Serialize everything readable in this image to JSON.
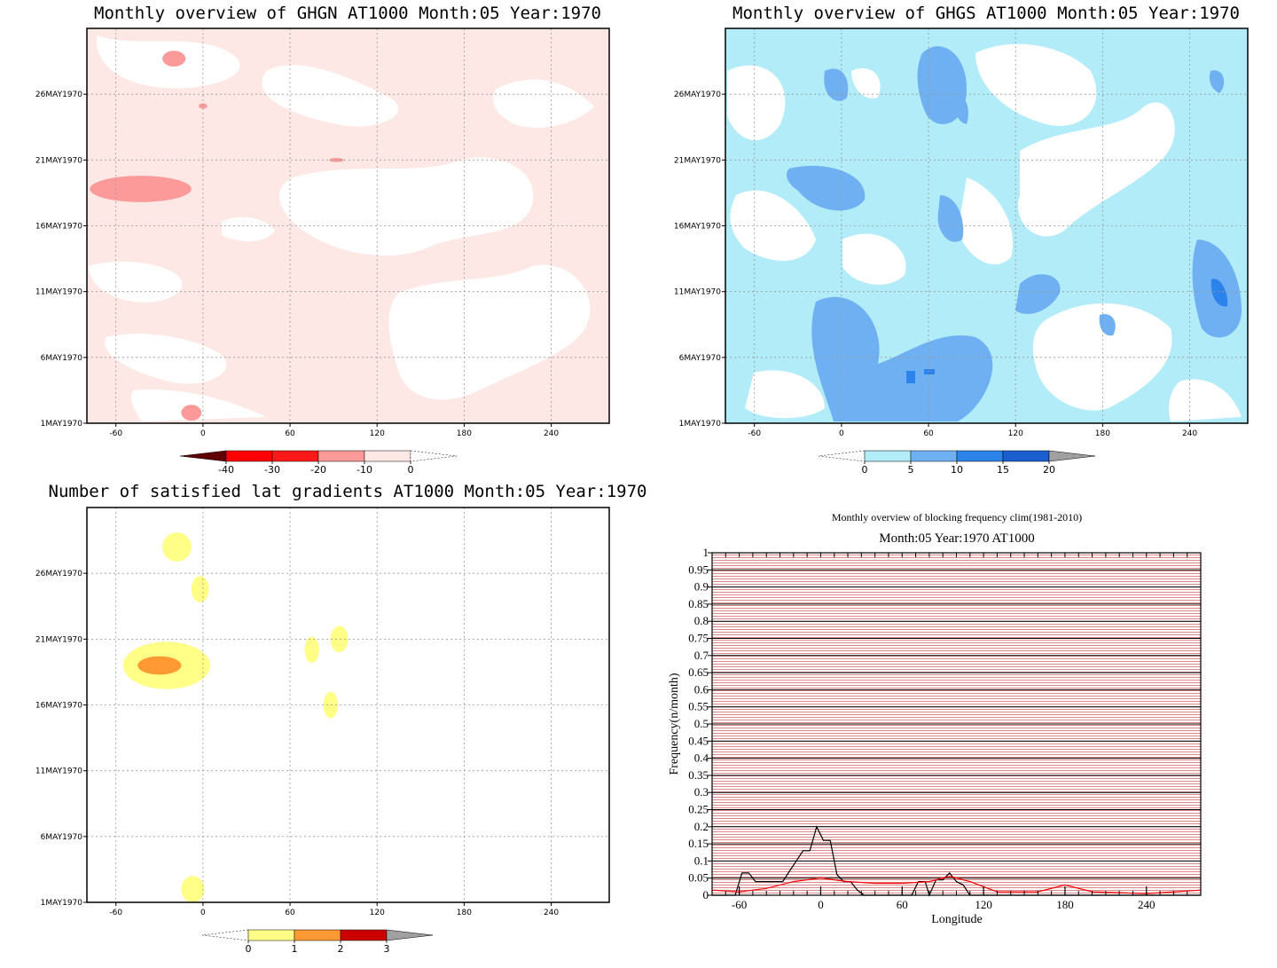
{
  "chart_data": [
    {
      "type": "heatmap",
      "title": "Monthly overview of GHGN AT1000 Month:05 Year:1970",
      "x_ticks": [
        "-60",
        "0",
        "60",
        "120",
        "180",
        "240"
      ],
      "x_tick_values": [
        -60,
        0,
        60,
        120,
        180,
        240
      ],
      "xlim": [
        -80,
        280
      ],
      "y_ticks": [
        "1MAY1970",
        "6MAY1970",
        "11MAY1970",
        "16MAY1970",
        "21MAY1970",
        "26MAY1970"
      ],
      "y_tick_values": [
        1,
        6,
        11,
        16,
        21,
        26
      ],
      "ylim": [
        1,
        31
      ],
      "colorbar": {
        "labels": [
          "-40",
          "-30",
          "-20",
          "-10",
          "0"
        ],
        "colors": [
          "#ffffff",
          "#fde8e6",
          "#fb9a98",
          "#ff1a1a",
          "#ff0000",
          "#600000"
        ]
      },
      "features": [
        {
          "lon": -20,
          "day": 28.7,
          "rlon": 8,
          "rday": 0.6,
          "level": 2
        },
        {
          "lon": -43,
          "day": 18.8,
          "rlon": 35,
          "rday": 1.0,
          "level": 2
        },
        {
          "lon": -8,
          "day": 1.8,
          "rlon": 7,
          "rday": 0.6,
          "level": 2
        },
        {
          "lon": 0,
          "day": 25.1,
          "rlon": 3,
          "rday": 0.2,
          "level": 2
        },
        {
          "lon": 92,
          "day": 21,
          "rlon": 5,
          "rday": 0.15,
          "level": 2
        }
      ]
    },
    {
      "type": "heatmap",
      "title": "Monthly overview of GHGS AT1000 Month:05 Year:1970",
      "x_ticks": [
        "-60",
        "0",
        "60",
        "120",
        "180",
        "240"
      ],
      "x_tick_values": [
        -60,
        0,
        60,
        120,
        180,
        240
      ],
      "xlim": [
        -80,
        280
      ],
      "y_ticks": [
        "1MAY1970",
        "6MAY1970",
        "11MAY1970",
        "16MAY1970",
        "21MAY1970",
        "26MAY1970"
      ],
      "y_tick_values": [
        1,
        6,
        11,
        16,
        21,
        26
      ],
      "ylim": [
        1,
        31
      ],
      "colorbar": {
        "labels": [
          "0",
          "5",
          "10",
          "15",
          "20"
        ],
        "colors": [
          "#ffffff",
          "#b2ecf8",
          "#6fb0f3",
          "#2c84eb",
          "#1a5ed0",
          "#a0a0a0"
        ]
      },
      "features": [
        {
          "lon": 60,
          "day": 4,
          "rlon": 48,
          "rday": 3.2,
          "level": 2
        },
        {
          "lon": 20,
          "day": 9,
          "rlon": 22,
          "rday": 2.2,
          "level": 2
        },
        {
          "lon": 80,
          "day": 27,
          "rlon": 12,
          "rday": 3,
          "level": 2
        },
        {
          "lon": 73,
          "day": 16,
          "rlon": 9,
          "rday": 3,
          "level": 2
        },
        {
          "lon": 0,
          "day": 19,
          "rlon": 18,
          "rday": 1.5,
          "level": 2
        },
        {
          "lon": 270,
          "day": 11,
          "rlon": 12,
          "rday": 3.5,
          "level": 2
        },
        {
          "lon": 272,
          "day": 11,
          "rlon": 4,
          "rday": 1.2,
          "level": 3
        },
        {
          "lon": 150,
          "day": 10,
          "rlon": 12,
          "rday": 2,
          "level": 2
        },
        {
          "lon": 46,
          "day": 4,
          "rlon": 2,
          "rday": 0.5,
          "level": 3
        },
        {
          "lon": 62,
          "day": 4,
          "rlon": 3,
          "rday": 0.3,
          "level": 3
        },
        {
          "lon": 7,
          "day": 28,
          "rlon": 8,
          "rday": 1.8,
          "level": 2
        }
      ]
    },
    {
      "type": "heatmap",
      "title": "Number of satisfied lat gradients AT1000 Month:05 Year:1970",
      "x_ticks": [
        "-60",
        "0",
        "60",
        "120",
        "180",
        "240"
      ],
      "x_tick_values": [
        -60,
        0,
        60,
        120,
        180,
        240
      ],
      "xlim": [
        -80,
        280
      ],
      "y_ticks": [
        "1MAY1970",
        "6MAY1970",
        "11MAY1970",
        "16MAY1970",
        "21MAY1970",
        "26MAY1970"
      ],
      "y_tick_values": [
        1,
        6,
        11,
        16,
        21,
        26
      ],
      "ylim": [
        1,
        31
      ],
      "colorbar": {
        "labels": [
          "0",
          "1",
          "2",
          "3"
        ],
        "colors": [
          "#ffffff",
          "#ffff88",
          "#ff9933",
          "#cc0000",
          "#a0a0a0"
        ]
      },
      "features": [
        {
          "lon": -18,
          "day": 28,
          "rlon": 10,
          "rday": 1.1,
          "level": 1
        },
        {
          "lon": -2,
          "day": 24.8,
          "rlon": 6,
          "rday": 1.0,
          "level": 1
        },
        {
          "lon": -25,
          "day": 19,
          "rlon": 30,
          "rday": 1.8,
          "level": 1
        },
        {
          "lon": -30,
          "day": 19,
          "rlon": 15,
          "rday": 0.7,
          "level": 2
        },
        {
          "lon": 75,
          "day": 20.2,
          "rlon": 5,
          "rday": 1.0,
          "level": 1
        },
        {
          "lon": 94,
          "day": 21.0,
          "rlon": 6,
          "rday": 1.0,
          "level": 1
        },
        {
          "lon": 88,
          "day": 16.0,
          "rlon": 5,
          "rday": 1.0,
          "level": 1
        },
        {
          "lon": -7,
          "day": 2,
          "rlon": 8,
          "rday": 1.0,
          "level": 1
        }
      ]
    },
    {
      "type": "line",
      "title": "Monthly overview of blocking frequency clim(1981-2010)",
      "subtitle": "Month:05 Year:1970  AT1000",
      "xlabel": "Longitude",
      "ylabel": "Frequency(n/month)",
      "xlim": [
        -80,
        280
      ],
      "ylim": [
        0,
        1
      ],
      "x_ticks": [
        "-60",
        "0",
        "60",
        "120",
        "180",
        "240"
      ],
      "x_tick_values": [
        -60,
        0,
        60,
        120,
        180,
        240
      ],
      "y_ticks": [
        "0",
        "0.05",
        "0.1",
        "0.15",
        "0.2",
        "0.25",
        "0.3",
        "0.35",
        "0.4",
        "0.45",
        "0.5",
        "0.55",
        "0.6",
        "0.65",
        "0.7",
        "0.75",
        "0.8",
        "0.85",
        "0.9",
        "0.95",
        "1"
      ],
      "grid": true,
      "series": [
        {
          "color": "#000000",
          "points": [
            [
              -80,
              0
            ],
            [
              -63,
              0
            ],
            [
              -58,
              0.065
            ],
            [
              -53,
              0.065
            ],
            [
              -48,
              0.04
            ],
            [
              -38,
              0.04
            ],
            [
              -28,
              0.04
            ],
            [
              -23,
              0.07
            ],
            [
              -18,
              0.1
            ],
            [
              -13,
              0.13
            ],
            [
              -8,
              0.13
            ],
            [
              -3,
              0.2
            ],
            [
              2,
              0.16
            ],
            [
              7,
              0.16
            ],
            [
              12,
              0.06
            ],
            [
              17,
              0.04
            ],
            [
              22,
              0.04
            ],
            [
              27,
              0.015
            ],
            [
              32,
              0
            ],
            [
              62,
              0
            ],
            [
              67,
              0
            ],
            [
              72,
              0.04
            ],
            [
              77,
              0.04
            ],
            [
              80,
              0
            ],
            [
              85,
              0.045
            ],
            [
              90,
              0.045
            ],
            [
              95,
              0.065
            ],
            [
              100,
              0.04
            ],
            [
              105,
              0.03
            ],
            [
              110,
              0
            ],
            [
              280,
              0
            ]
          ]
        },
        {
          "color": "#ff0000",
          "points": [
            [
              -80,
              0.015
            ],
            [
              -60,
              0.01
            ],
            [
              -40,
              0.02
            ],
            [
              -20,
              0.04
            ],
            [
              0,
              0.05
            ],
            [
              20,
              0.04
            ],
            [
              40,
              0.035
            ],
            [
              60,
              0.035
            ],
            [
              80,
              0.04
            ],
            [
              95,
              0.055
            ],
            [
              110,
              0.04
            ],
            [
              130,
              0.01
            ],
            [
              160,
              0.01
            ],
            [
              180,
              0.03
            ],
            [
              200,
              0.01
            ],
            [
              240,
              0.005
            ],
            [
              280,
              0.015
            ]
          ]
        }
      ]
    }
  ]
}
